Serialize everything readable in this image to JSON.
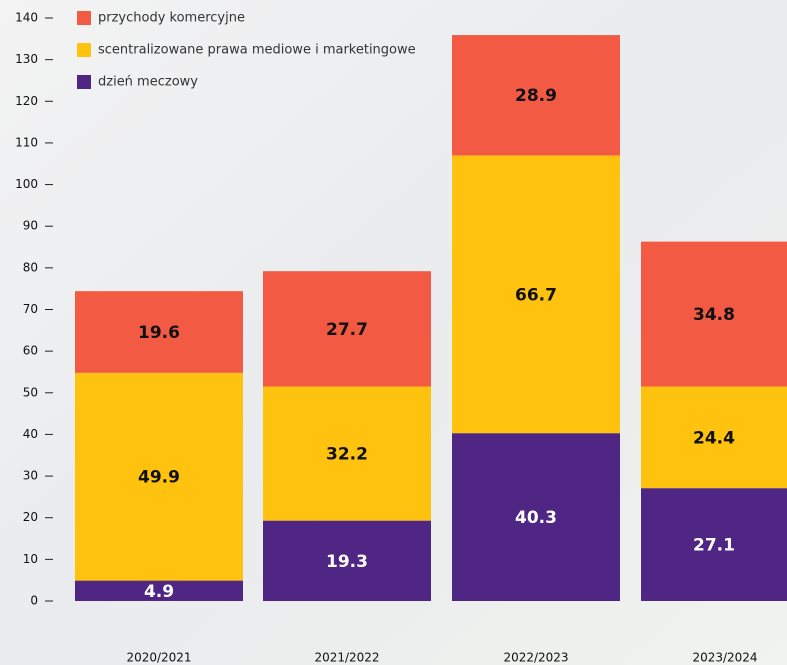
{
  "chart_data": {
    "type": "stacked_bar",
    "categories": [
      "2020/2021",
      "2021/2022",
      "2022/2023",
      "2023/2024"
    ],
    "series": [
      {
        "name": "dzień meczowy",
        "color": "#4f2683",
        "values": [
          4.9,
          19.3,
          40.3,
          27.1
        ]
      },
      {
        "name": "scentralizowane prawa mediowe i marketingowe",
        "color": "#ffc20e",
        "values": [
          49.9,
          32.2,
          66.7,
          24.4
        ]
      },
      {
        "name": "przychody komercyjne",
        "color": "#f25a44",
        "values": [
          19.6,
          27.7,
          28.9,
          34.8
        ]
      }
    ],
    "ylim": [
      0,
      140
    ],
    "yticks": [
      0,
      10,
      20,
      30,
      40,
      50,
      60,
      70,
      80,
      90,
      100,
      110,
      120,
      130,
      140
    ],
    "legend": "top-left"
  }
}
